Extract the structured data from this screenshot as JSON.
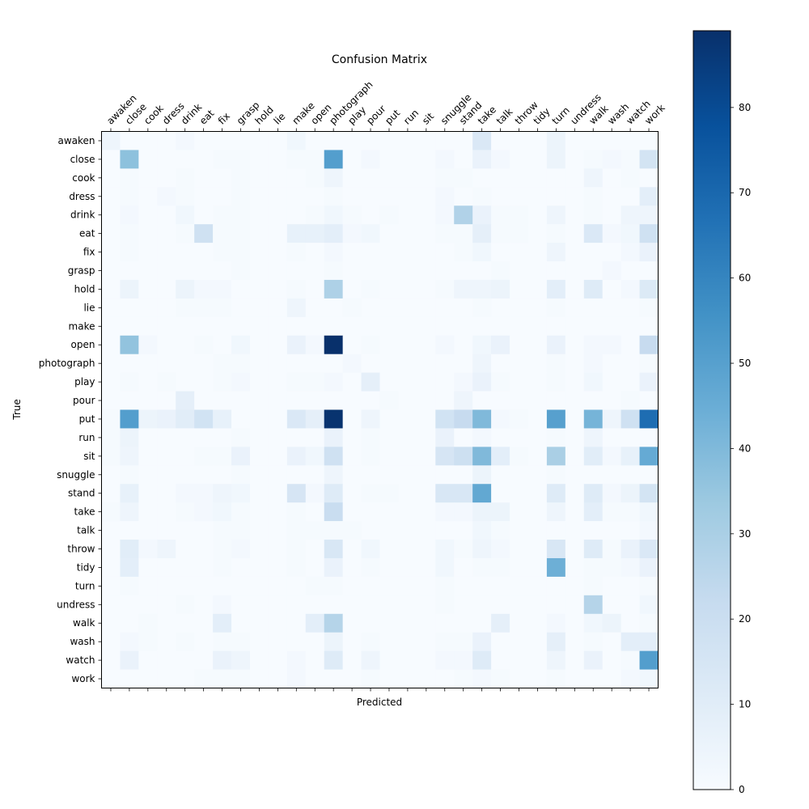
{
  "chart_data": {
    "type": "heatmap",
    "title": "Confusion Matrix",
    "xlabel": "Predicted",
    "ylabel": "True",
    "labels": [
      "awaken",
      "close",
      "cook",
      "dress",
      "drink",
      "eat",
      "fix",
      "grasp",
      "hold",
      "lie",
      "make",
      "open",
      "photograph",
      "play",
      "pour",
      "put",
      "run",
      "sit",
      "snuggle",
      "stand",
      "take",
      "talk",
      "throw",
      "tidy",
      "turn",
      "undress",
      "walk",
      "wash",
      "watch",
      "work"
    ],
    "colorbar": {
      "min": 0,
      "max": 89,
      "ticks": [
        0,
        10,
        20,
        30,
        40,
        50,
        60,
        70,
        80
      ]
    },
    "colormap": [
      "#f7fbff",
      "#deebf7",
      "#c6dbef",
      "#9ecae1",
      "#6baed6",
      "#4292c6",
      "#2171b5",
      "#08519c",
      "#08306b"
    ],
    "matrix": [
      [
        4,
        0,
        0,
        0,
        2,
        0,
        0,
        0,
        0,
        0,
        3,
        0,
        0,
        0,
        0,
        0,
        0,
        0,
        0,
        0,
        13,
        0,
        0,
        0,
        5,
        0,
        0,
        0,
        0,
        0
      ],
      [
        0,
        37,
        0,
        0,
        0,
        0,
        1,
        1,
        0,
        0,
        1,
        1,
        51,
        0,
        2,
        0,
        0,
        0,
        2,
        0,
        6,
        2,
        0,
        0,
        5,
        0,
        1,
        2,
        1,
        16
      ],
      [
        0,
        1,
        0,
        0,
        1,
        0,
        0,
        1,
        0,
        0,
        0,
        1,
        4,
        0,
        0,
        0,
        0,
        0,
        1,
        1,
        0,
        0,
        0,
        0,
        0,
        0,
        4,
        0,
        1,
        0
      ],
      [
        0,
        1,
        0,
        2,
        1,
        0,
        0,
        1,
        0,
        0,
        0,
        0,
        1,
        0,
        0,
        0,
        0,
        0,
        2,
        0,
        1,
        0,
        0,
        0,
        0,
        0,
        1,
        0,
        0,
        9
      ],
      [
        0,
        2,
        0,
        0,
        3,
        0,
        1,
        1,
        0,
        0,
        0,
        1,
        3,
        1,
        0,
        1,
        0,
        0,
        2,
        28,
        6,
        1,
        1,
        0,
        4,
        0,
        1,
        0,
        4,
        4
      ],
      [
        0,
        1,
        0,
        0,
        1,
        18,
        1,
        1,
        0,
        0,
        7,
        7,
        9,
        2,
        3,
        0,
        0,
        0,
        1,
        1,
        8,
        1,
        1,
        0,
        1,
        0,
        13,
        2,
        3,
        18
      ],
      [
        0,
        1,
        0,
        0,
        0,
        0,
        1,
        1,
        0,
        0,
        1,
        0,
        2,
        0,
        0,
        0,
        0,
        0,
        0,
        1,
        3,
        0,
        0,
        0,
        4,
        0,
        0,
        0,
        2,
        6
      ],
      [
        0,
        0,
        0,
        0,
        0,
        0,
        0,
        1,
        0,
        0,
        0,
        0,
        1,
        0,
        0,
        0,
        0,
        0,
        0,
        0,
        0,
        1,
        0,
        0,
        0,
        0,
        0,
        2,
        0,
        0
      ],
      [
        0,
        5,
        0,
        0,
        5,
        2,
        2,
        0,
        0,
        0,
        1,
        0,
        29,
        0,
        1,
        0,
        0,
        0,
        1,
        4,
        4,
        5,
        0,
        0,
        9,
        0,
        11,
        0,
        2,
        12
      ],
      [
        0,
        0,
        0,
        0,
        1,
        1,
        1,
        0,
        0,
        0,
        4,
        0,
        0,
        1,
        0,
        0,
        0,
        0,
        0,
        0,
        1,
        0,
        0,
        0,
        1,
        0,
        0,
        0,
        0,
        1
      ],
      [
        0,
        0,
        0,
        0,
        0,
        0,
        0,
        0,
        0,
        0,
        0,
        0,
        0,
        0,
        0,
        0,
        0,
        0,
        0,
        0,
        0,
        0,
        0,
        0,
        0,
        0,
        0,
        0,
        0,
        0
      ],
      [
        0,
        36,
        2,
        0,
        0,
        1,
        0,
        3,
        0,
        0,
        6,
        2,
        89,
        0,
        1,
        0,
        0,
        0,
        2,
        0,
        3,
        6,
        0,
        0,
        6,
        0,
        2,
        2,
        0,
        22
      ],
      [
        0,
        0,
        0,
        0,
        0,
        0,
        1,
        1,
        0,
        0,
        0,
        0,
        0,
        2,
        0,
        0,
        0,
        0,
        0,
        0,
        4,
        0,
        0,
        0,
        1,
        0,
        2,
        0,
        0,
        1
      ],
      [
        0,
        1,
        0,
        1,
        0,
        0,
        1,
        2,
        0,
        0,
        1,
        1,
        2,
        0,
        8,
        0,
        0,
        0,
        0,
        2,
        6,
        1,
        0,
        0,
        1,
        0,
        3,
        0,
        0,
        6
      ],
      [
        0,
        0,
        0,
        0,
        8,
        0,
        0,
        0,
        0,
        0,
        0,
        0,
        0,
        0,
        0,
        1,
        0,
        0,
        0,
        4,
        0,
        0,
        0,
        0,
        0,
        0,
        0,
        0,
        1,
        0
      ],
      [
        1,
        51,
        5,
        6,
        10,
        17,
        7,
        0,
        0,
        0,
        13,
        8,
        88,
        0,
        4,
        0,
        0,
        0,
        17,
        22,
        40,
        2,
        1,
        0,
        50,
        0,
        42,
        4,
        18,
        68
      ],
      [
        1,
        5,
        0,
        0,
        0,
        0,
        0,
        1,
        0,
        0,
        0,
        0,
        6,
        0,
        1,
        0,
        0,
        0,
        6,
        0,
        2,
        0,
        0,
        0,
        1,
        0,
        4,
        0,
        0,
        0
      ],
      [
        1,
        4,
        0,
        0,
        0,
        1,
        1,
        6,
        0,
        0,
        6,
        3,
        18,
        0,
        1,
        0,
        0,
        0,
        15,
        19,
        40,
        9,
        1,
        0,
        30,
        0,
        10,
        2,
        7,
        46
      ],
      [
        0,
        1,
        0,
        0,
        0,
        0,
        0,
        1,
        0,
        0,
        0,
        0,
        4,
        0,
        0,
        0,
        0,
        0,
        0,
        0,
        5,
        0,
        0,
        0,
        1,
        0,
        0,
        0,
        0,
        0
      ],
      [
        0,
        7,
        0,
        0,
        2,
        2,
        4,
        3,
        0,
        0,
        15,
        2,
        11,
        0,
        1,
        1,
        0,
        0,
        14,
        14,
        47,
        0,
        0,
        0,
        11,
        0,
        11,
        2,
        5,
        16
      ],
      [
        1,
        4,
        0,
        0,
        1,
        2,
        3,
        1,
        0,
        0,
        1,
        0,
        21,
        0,
        0,
        0,
        0,
        0,
        2,
        2,
        5,
        5,
        0,
        0,
        4,
        0,
        9,
        1,
        1,
        3
      ],
      [
        0,
        0,
        0,
        0,
        0,
        0,
        1,
        1,
        0,
        0,
        1,
        1,
        1,
        1,
        0,
        0,
        0,
        0,
        0,
        0,
        3,
        1,
        0,
        0,
        0,
        0,
        0,
        0,
        0,
        2
      ],
      [
        0,
        10,
        2,
        4,
        0,
        0,
        1,
        2,
        0,
        0,
        1,
        0,
        14,
        0,
        3,
        0,
        0,
        0,
        3,
        1,
        4,
        2,
        0,
        0,
        14,
        0,
        11,
        1,
        6,
        13
      ],
      [
        0,
        9,
        0,
        0,
        0,
        0,
        1,
        0,
        0,
        0,
        1,
        0,
        6,
        0,
        1,
        0,
        0,
        0,
        3,
        0,
        1,
        1,
        0,
        0,
        44,
        0,
        1,
        1,
        2,
        6
      ],
      [
        0,
        1,
        0,
        0,
        0,
        0,
        0,
        0,
        0,
        0,
        0,
        1,
        1,
        0,
        0,
        0,
        0,
        0,
        1,
        0,
        0,
        0,
        0,
        0,
        0,
        0,
        1,
        0,
        0,
        1
      ],
      [
        0,
        0,
        0,
        0,
        1,
        0,
        2,
        0,
        0,
        0,
        0,
        0,
        0,
        0,
        0,
        0,
        0,
        0,
        1,
        0,
        0,
        0,
        0,
        0,
        0,
        0,
        27,
        0,
        0,
        3
      ],
      [
        0,
        0,
        1,
        0,
        0,
        0,
        9,
        0,
        0,
        0,
        0,
        9,
        27,
        0,
        0,
        0,
        0,
        0,
        0,
        0,
        0,
        8,
        0,
        0,
        2,
        0,
        3,
        5,
        0,
        1
      ],
      [
        0,
        2,
        1,
        0,
        1,
        0,
        1,
        1,
        0,
        0,
        0,
        0,
        5,
        0,
        1,
        0,
        0,
        0,
        1,
        1,
        6,
        0,
        0,
        0,
        8,
        0,
        1,
        0,
        9,
        9
      ],
      [
        0,
        6,
        0,
        0,
        0,
        0,
        6,
        4,
        0,
        0,
        2,
        0,
        11,
        0,
        4,
        0,
        0,
        0,
        2,
        2,
        11,
        0,
        0,
        0,
        4,
        0,
        6,
        0,
        1,
        51
      ],
      [
        0,
        0,
        0,
        0,
        0,
        1,
        1,
        1,
        0,
        0,
        2,
        0,
        0,
        0,
        1,
        0,
        0,
        0,
        0,
        1,
        2,
        1,
        0,
        0,
        1,
        0,
        0,
        0,
        2,
        3
      ]
    ]
  }
}
